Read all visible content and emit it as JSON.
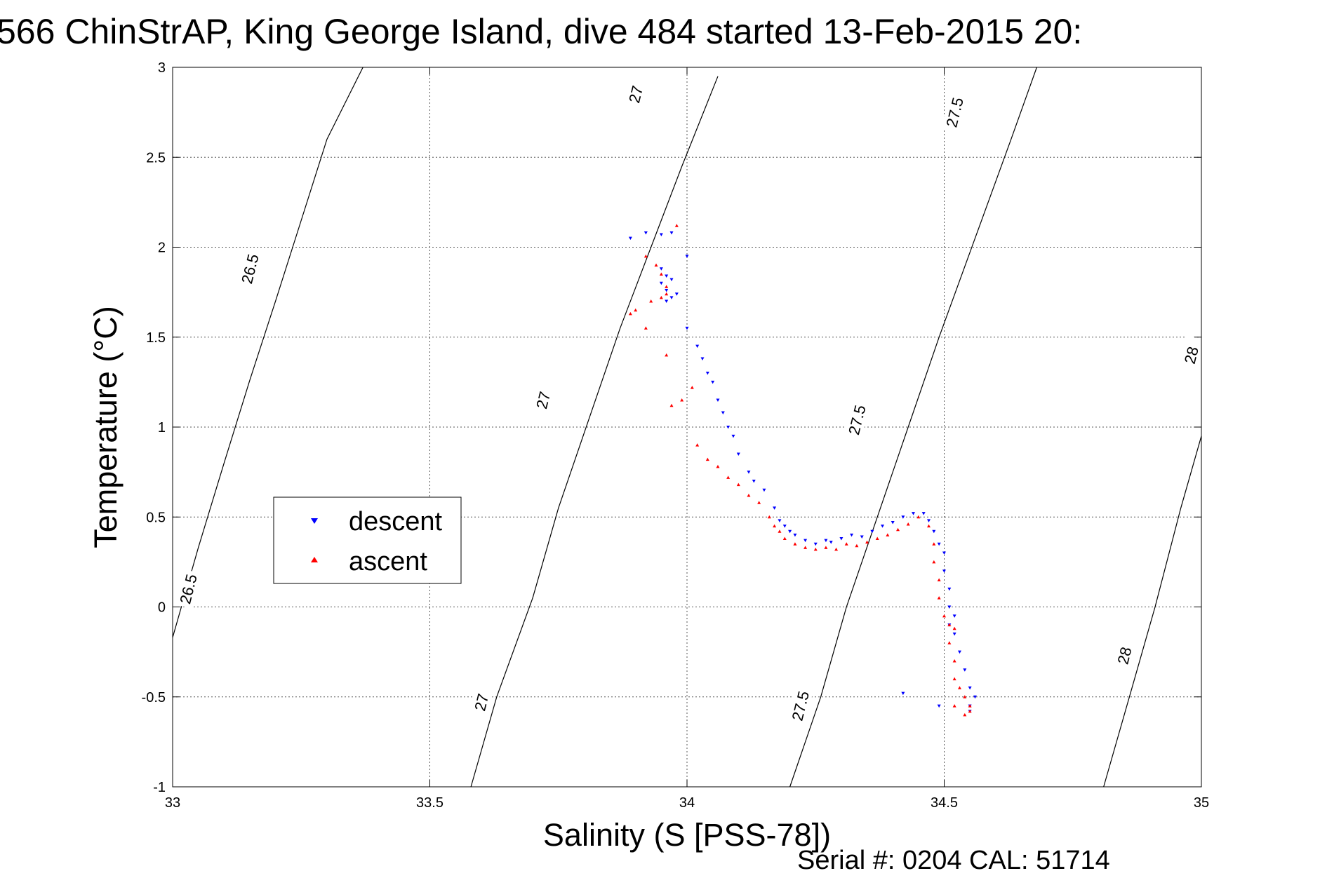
{
  "chart_data": {
    "type": "scatter",
    "title": "566 ChinStrAP, King George Island, dive 484 started 13-Feb-2015 20:",
    "xlabel": "Salinity (S [PSS-78])",
    "ylabel": "Temperature (°C)",
    "xlim": [
      33,
      35
    ],
    "ylim": [
      -1,
      3
    ],
    "x_ticks": [
      "33",
      "33.5",
      "34",
      "34.5",
      "35"
    ],
    "y_ticks": [
      "-1",
      "-0.5",
      "0",
      "0.5",
      "1",
      "1.5",
      "2",
      "2.5",
      "3"
    ],
    "grid": true,
    "legend_position": "middle-left",
    "footer": "Serial #: 0204  CAL: 51714",
    "density_contours": [
      {
        "label": "26.5",
        "label_positions": [
          [
            33.15,
            1.88
          ],
          [
            33.03,
            0.1
          ]
        ],
        "points": [
          [
            33.0,
            -0.17
          ],
          [
            33.05,
            0.33
          ],
          [
            33.1,
            0.8
          ],
          [
            33.15,
            1.26
          ],
          [
            33.2,
            1.7
          ],
          [
            33.25,
            2.15
          ],
          [
            33.3,
            2.6
          ],
          [
            33.37,
            3.0
          ]
        ]
      },
      {
        "label": "27",
        "label_positions": [
          [
            33.9,
            2.85
          ],
          [
            33.72,
            1.15
          ],
          [
            33.6,
            -0.53
          ]
        ],
        "points": [
          [
            33.58,
            -1.0
          ],
          [
            33.63,
            -0.5
          ],
          [
            33.7,
            0.05
          ],
          [
            33.75,
            0.55
          ],
          [
            33.81,
            1.05
          ],
          [
            33.87,
            1.55
          ],
          [
            33.93,
            2.0
          ],
          [
            33.99,
            2.45
          ],
          [
            34.06,
            2.95
          ]
        ]
      },
      {
        "label": "27.5",
        "label_positions": [
          [
            34.52,
            2.75
          ],
          [
            34.33,
            1.04
          ],
          [
            34.22,
            -0.55
          ]
        ],
        "points": [
          [
            34.2,
            -1.0
          ],
          [
            34.26,
            -0.5
          ],
          [
            34.31,
            0.0
          ],
          [
            34.37,
            0.5
          ],
          [
            34.43,
            1.0
          ],
          [
            34.49,
            1.5
          ],
          [
            34.56,
            2.05
          ],
          [
            34.63,
            2.6
          ],
          [
            34.68,
            3.0
          ]
        ]
      },
      {
        "label": "28",
        "label_positions": [
          [
            34.98,
            1.4
          ],
          [
            34.85,
            -0.27
          ]
        ],
        "points": [
          [
            34.81,
            -1.0
          ],
          [
            34.86,
            -0.5
          ],
          [
            34.91,
            0.0
          ],
          [
            34.96,
            0.55
          ],
          [
            35.0,
            0.95
          ]
        ]
      }
    ],
    "series": [
      {
        "name": "descent",
        "color": "#0000ff",
        "marker": "triangle-down",
        "points": [
          [
            33.89,
            2.05
          ],
          [
            33.92,
            2.08
          ],
          [
            33.95,
            2.07
          ],
          [
            33.97,
            2.08
          ],
          [
            34.0,
            1.95
          ],
          [
            33.95,
            1.88
          ],
          [
            33.96,
            1.84
          ],
          [
            33.97,
            1.82
          ],
          [
            33.95,
            1.8
          ],
          [
            33.96,
            1.76
          ],
          [
            33.98,
            1.74
          ],
          [
            33.97,
            1.72
          ],
          [
            33.96,
            1.7
          ],
          [
            34.0,
            1.55
          ],
          [
            34.02,
            1.45
          ],
          [
            34.03,
            1.38
          ],
          [
            34.04,
            1.3
          ],
          [
            34.05,
            1.25
          ],
          [
            34.06,
            1.15
          ],
          [
            34.07,
            1.08
          ],
          [
            34.08,
            1.0
          ],
          [
            34.09,
            0.95
          ],
          [
            34.1,
            0.85
          ],
          [
            34.12,
            0.75
          ],
          [
            34.13,
            0.7
          ],
          [
            34.15,
            0.65
          ],
          [
            34.17,
            0.55
          ],
          [
            34.18,
            0.48
          ],
          [
            34.19,
            0.45
          ],
          [
            34.2,
            0.42
          ],
          [
            34.21,
            0.4
          ],
          [
            34.23,
            0.37
          ],
          [
            34.25,
            0.35
          ],
          [
            34.27,
            0.37
          ],
          [
            34.28,
            0.36
          ],
          [
            34.3,
            0.38
          ],
          [
            34.32,
            0.4
          ],
          [
            34.34,
            0.39
          ],
          [
            34.36,
            0.42
          ],
          [
            34.38,
            0.45
          ],
          [
            34.4,
            0.47
          ],
          [
            34.42,
            0.5
          ],
          [
            34.44,
            0.52
          ],
          [
            34.46,
            0.52
          ],
          [
            34.47,
            0.48
          ],
          [
            34.48,
            0.42
          ],
          [
            34.49,
            0.35
          ],
          [
            34.5,
            0.3
          ],
          [
            34.5,
            0.2
          ],
          [
            34.51,
            0.1
          ],
          [
            34.51,
            0.0
          ],
          [
            34.52,
            -0.05
          ],
          [
            34.51,
            -0.1
          ],
          [
            34.52,
            -0.15
          ],
          [
            34.53,
            -0.25
          ],
          [
            34.54,
            -0.35
          ],
          [
            34.55,
            -0.45
          ],
          [
            34.56,
            -0.5
          ],
          [
            34.55,
            -0.55
          ],
          [
            34.55,
            -0.58
          ],
          [
            34.42,
            -0.48
          ],
          [
            34.49,
            -0.55
          ]
        ]
      },
      {
        "name": "ascent",
        "color": "#ff0000",
        "marker": "triangle-up",
        "points": [
          [
            33.98,
            2.12
          ],
          [
            33.92,
            1.95
          ],
          [
            33.94,
            1.9
          ],
          [
            33.95,
            1.85
          ],
          [
            33.96,
            1.78
          ],
          [
            33.96,
            1.74
          ],
          [
            33.95,
            1.72
          ],
          [
            33.93,
            1.7
          ],
          [
            33.9,
            1.65
          ],
          [
            33.89,
            1.63
          ],
          [
            33.92,
            1.55
          ],
          [
            33.96,
            1.4
          ],
          [
            33.97,
            1.12
          ],
          [
            33.99,
            1.15
          ],
          [
            34.01,
            1.22
          ],
          [
            34.02,
            0.9
          ],
          [
            34.04,
            0.82
          ],
          [
            34.06,
            0.78
          ],
          [
            34.08,
            0.72
          ],
          [
            34.1,
            0.68
          ],
          [
            34.12,
            0.62
          ],
          [
            34.14,
            0.58
          ],
          [
            34.16,
            0.5
          ],
          [
            34.17,
            0.45
          ],
          [
            34.18,
            0.42
          ],
          [
            34.19,
            0.38
          ],
          [
            34.21,
            0.35
          ],
          [
            34.23,
            0.33
          ],
          [
            34.25,
            0.32
          ],
          [
            34.27,
            0.33
          ],
          [
            34.29,
            0.32
          ],
          [
            34.31,
            0.35
          ],
          [
            34.33,
            0.34
          ],
          [
            34.35,
            0.36
          ],
          [
            34.37,
            0.38
          ],
          [
            34.39,
            0.4
          ],
          [
            34.41,
            0.43
          ],
          [
            34.43,
            0.46
          ],
          [
            34.45,
            0.5
          ],
          [
            34.47,
            0.45
          ],
          [
            34.48,
            0.35
          ],
          [
            34.48,
            0.25
          ],
          [
            34.49,
            0.15
          ],
          [
            34.49,
            0.05
          ],
          [
            34.5,
            -0.05
          ],
          [
            34.51,
            -0.1
          ],
          [
            34.52,
            -0.12
          ],
          [
            34.51,
            -0.2
          ],
          [
            34.52,
            -0.3
          ],
          [
            34.52,
            -0.4
          ],
          [
            34.53,
            -0.45
          ],
          [
            34.54,
            -0.5
          ],
          [
            34.55,
            -0.55
          ],
          [
            34.55,
            -0.58
          ],
          [
            34.54,
            -0.6
          ],
          [
            34.52,
            -0.55
          ]
        ]
      }
    ]
  }
}
